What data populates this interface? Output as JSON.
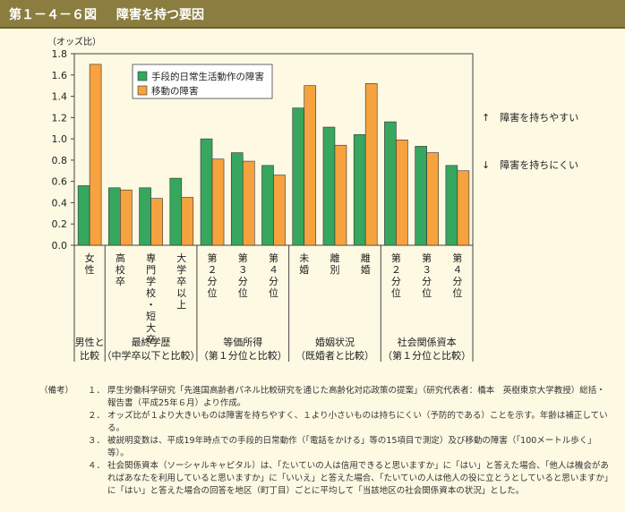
{
  "header": {
    "figure_number": "第１－４－６図",
    "title": "障害を持つ要因"
  },
  "chart_data": {
    "type": "bar",
    "ylabel": "（オッズ比）",
    "ylim": [
      0,
      1.8
    ],
    "yticks": [
      "0.0",
      "0.2",
      "0.4",
      "0.6",
      "0.8",
      "1.0",
      "1.2",
      "1.4",
      "1.6",
      "1.8"
    ],
    "categories": [
      "女性",
      "高校卒",
      "専門学校・短大卒",
      "大学卒以上",
      "第２分位",
      "第３分位",
      "第４分位",
      "未婚",
      "離別",
      "離婚",
      "第２分位",
      "第３分位",
      "第４分位"
    ],
    "series": [
      {
        "name": "手段的日常生活動作の障害",
        "color": "#37a65e",
        "values": [
          0.56,
          0.54,
          0.54,
          0.63,
          1.0,
          0.87,
          0.75,
          1.29,
          1.11,
          1.04,
          1.16,
          0.93,
          0.75
        ]
      },
      {
        "name": "移動の障害",
        "color": "#f6a23e",
        "values": [
          1.7,
          0.52,
          0.44,
          0.45,
          0.81,
          0.79,
          0.66,
          1.5,
          0.94,
          1.52,
          0.99,
          0.87,
          0.7
        ]
      }
    ],
    "groups": [
      {
        "line1": "男性と",
        "line2": "比較"
      },
      {
        "line1": "最終学歴",
        "line2": "（中学卒以下と比較）"
      },
      {
        "line1": "等価所得",
        "line2": "（第１分位と比較）"
      },
      {
        "line1": "婚姻状況",
        "line2": "（既婚者と比較）"
      },
      {
        "line1": "社会関係資本",
        "line2": "（第１分位と比較）"
      }
    ],
    "annotations": {
      "up": "↑　障害を持ちやすい",
      "down": "↓　障害を持ちにくい"
    },
    "legend_position": "top-center",
    "grid": false
  },
  "notes": {
    "label": "（備考）",
    "items": [
      {
        "num": "１．",
        "text": "厚生労働科学研究「先進国高齢者パネル比較研究を通じた高齢化対応政策の提案」（研究代表者：橋本　英樹東京大学教授）総括・報告書（平成25年６月）より作成。"
      },
      {
        "num": "２．",
        "text": "オッズ比が１より大きいものは障害を持ちやすく、１より小さいものは持ちにくい（予防的である）ことを示す。年齢は補正している。"
      },
      {
        "num": "３．",
        "text": "被説明変数は、平成19年時点での手段的日常動作（「電話をかける」等の15項目で測定）及び移動の障害（「100メートル歩く」等）。"
      },
      {
        "num": "４．",
        "text": "社会関係資本（ソーシャルキャピタル）は、「たいていの人は信用できると思いますか」に「はい」と答えた場合、「他人は機会があればあなたを利用していると思いますか」に「いいえ」と答えた場合、「たいていの人は他人の役に立とうとしていると思いますか」に「はい」と答えた場合の回答を地区（町丁目）ごとに平均して「当該地区の社会関係資本の状況」とした。"
      }
    ]
  }
}
